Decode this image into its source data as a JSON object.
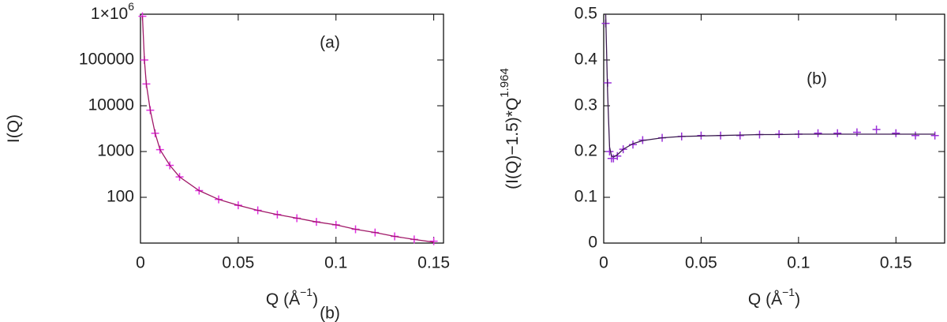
{
  "chart_data": [
    {
      "type": "scatter-line",
      "y_label": "I(Q)",
      "x_label": "Q  (Å",
      "x_label_sup": "−1",
      "x_label_end": ")",
      "annotations": [
        "(a)",
        "(b)"
      ],
      "ylog": true,
      "xlim": [
        0,
        0.155
      ],
      "xticks": [
        0,
        0.05,
        0.1,
        0.15
      ],
      "ylim": [
        10,
        1000000
      ],
      "yticks": [
        100,
        1000,
        10000,
        100000,
        {
          "value": 1000000,
          "label": "1×10"
        }
      ],
      "ytick_sup": "6",
      "x": [
        0.001,
        0.002,
        0.003,
        0.005,
        0.0075,
        0.01,
        0.015,
        0.02,
        0.03,
        0.04,
        0.05,
        0.06,
        0.07,
        0.08,
        0.09,
        0.1,
        0.11,
        0.12,
        0.13,
        0.14,
        0.15
      ],
      "series": [
        {
          "style": "cross",
          "color": "#e030e0",
          "values": [
            900000,
            100000,
            30000,
            8000,
            2500,
            1100,
            500,
            280,
            140,
            90,
            67,
            52,
            42,
            35,
            29,
            25,
            20,
            17,
            14,
            12,
            11
          ]
        },
        {
          "style": "line",
          "color": "#a01868",
          "values": [
            900000,
            100000,
            30000,
            8000,
            2500,
            1100,
            500,
            280,
            140,
            90,
            67,
            52,
            42,
            35,
            29,
            25,
            20,
            17,
            14,
            12,
            10.5
          ]
        }
      ]
    },
    {
      "type": "scatter-line",
      "y_label": "(I(Q)−1.5)*Q",
      "y_label_sup": "1.964",
      "x_label": "Q  (Å",
      "x_label_sup": "−1",
      "x_label_end": ")",
      "annotations": [
        "(b)"
      ],
      "ylog": false,
      "xlim": [
        0,
        0.175
      ],
      "xticks": [
        0,
        0.05,
        0.1,
        0.15
      ],
      "ylim": [
        0,
        0.5
      ],
      "yticks": [
        0,
        0.1,
        0.2,
        0.3,
        0.4,
        0.5
      ],
      "x": [
        0.001,
        0.002,
        0.003,
        0.004,
        0.005,
        0.007,
        0.01,
        0.015,
        0.02,
        0.03,
        0.04,
        0.05,
        0.06,
        0.07,
        0.08,
        0.09,
        0.1,
        0.11,
        0.12,
        0.13,
        0.14,
        0.15,
        0.16,
        0.17
      ],
      "series": [
        {
          "style": "cross",
          "color": "#9a30d8",
          "values": [
            0.48,
            0.35,
            0.2,
            0.185,
            0.185,
            0.19,
            0.205,
            0.215,
            0.225,
            0.23,
            0.233,
            0.235,
            0.235,
            0.235,
            0.237,
            0.238,
            0.238,
            0.24,
            0.24,
            0.242,
            0.248,
            0.24,
            0.235,
            0.235
          ]
        },
        {
          "style": "line",
          "color": "#3a1a50",
          "values": [
            0.5,
            0.33,
            0.21,
            0.19,
            0.188,
            0.193,
            0.205,
            0.217,
            0.224,
            0.23,
            0.233,
            0.234,
            0.235,
            0.236,
            0.237,
            0.237,
            0.238,
            0.238,
            0.238,
            0.238,
            0.238,
            0.238,
            0.238,
            0.238
          ]
        }
      ]
    }
  ]
}
